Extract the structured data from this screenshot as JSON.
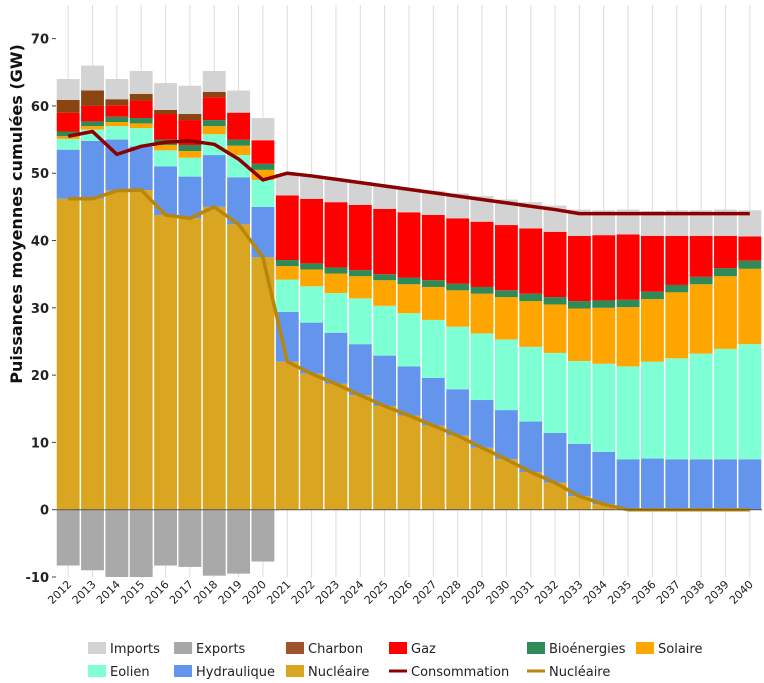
{
  "chart_data": {
    "type": "bar",
    "stacked": true,
    "title": "",
    "xlabel": "",
    "ylabel": "Puissances moyennes cumulées (GW)",
    "ylim": [
      -10,
      75
    ],
    "yticks": [
      -10,
      0,
      10,
      20,
      30,
      40,
      50,
      60,
      70
    ],
    "grid": "vertical",
    "legend_position": "bottom",
    "categories": [
      "2012",
      "2013",
      "2014",
      "2015",
      "2016",
      "2017",
      "2018",
      "2019",
      "2020",
      "2021",
      "2022",
      "2023",
      "2024",
      "2025",
      "2026",
      "2027",
      "2028",
      "2029",
      "2030",
      "2031",
      "2032",
      "2033",
      "2034",
      "2035",
      "2036",
      "2037",
      "2038",
      "2039",
      "2040"
    ],
    "series": [
      {
        "name": "Nucléaire",
        "color": "#DAA520",
        "values": [
          46.2,
          46.2,
          47.4,
          47.5,
          43.8,
          43.3,
          45.0,
          42.4,
          37.5,
          22.0,
          20.2,
          18.7,
          17.0,
          15.4,
          14.0,
          12.5,
          11.0,
          9.2,
          7.5,
          5.6,
          4.0,
          2.0,
          0.8,
          0,
          0,
          0,
          0,
          0,
          0
        ]
      },
      {
        "name": "Hydraulique",
        "color": "#6495ED",
        "values": [
          7.3,
          8.6,
          7.6,
          6.5,
          7.2,
          6.2,
          7.7,
          7.0,
          7.5,
          7.4,
          7.6,
          7.6,
          7.6,
          7.5,
          7.3,
          7.1,
          6.9,
          7.1,
          7.3,
          7.5,
          7.4,
          7.8,
          7.8,
          7.5,
          7.6,
          7.5,
          7.5,
          7.5,
          7.5
        ]
      },
      {
        "name": "Eolien",
        "color": "#7FFFD4",
        "values": [
          1.6,
          1.7,
          2.0,
          2.7,
          2.4,
          2.8,
          3.1,
          3.3,
          4.0,
          4.8,
          5.4,
          5.9,
          6.8,
          7.4,
          7.9,
          8.6,
          9.3,
          9.9,
          10.5,
          11.1,
          11.9,
          12.3,
          13.1,
          13.8,
          14.4,
          15.0,
          15.7,
          16.4,
          17.1
        ]
      },
      {
        "name": "Solaire",
        "color": "#FFA500",
        "values": [
          0.4,
          0.5,
          0.6,
          0.7,
          0.8,
          1.0,
          1.2,
          1.4,
          1.5,
          2.0,
          2.5,
          2.9,
          3.3,
          3.8,
          4.3,
          4.9,
          5.4,
          5.9,
          6.3,
          6.8,
          7.2,
          7.8,
          8.3,
          8.8,
          9.3,
          9.8,
          10.3,
          10.8,
          11.2
        ]
      },
      {
        "name": "Bioénergies",
        "color": "#2E8B57",
        "values": [
          0.7,
          0.7,
          0.8,
          0.8,
          0.8,
          0.9,
          0.9,
          0.9,
          0.9,
          0.9,
          0.9,
          0.9,
          0.9,
          0.9,
          1.0,
          1.0,
          1.0,
          1.0,
          1.0,
          1.1,
          1.1,
          1.1,
          1.1,
          1.1,
          1.1,
          1.1,
          1.1,
          1.2,
          1.2
        ]
      },
      {
        "name": "Gaz",
        "color": "#FF0000",
        "values": [
          2.8,
          2.3,
          1.7,
          2.6,
          3.8,
          3.7,
          3.4,
          4.0,
          3.5,
          9.6,
          9.6,
          9.7,
          9.7,
          9.7,
          9.7,
          9.7,
          9.7,
          9.7,
          9.7,
          9.7,
          9.7,
          9.7,
          9.7,
          9.7,
          8.3,
          7.3,
          6.1,
          4.8,
          3.6
        ]
      },
      {
        "name": "Charbon",
        "color": "#8B4513",
        "values": [
          1.9,
          2.3,
          0.9,
          1.0,
          0.6,
          0.9,
          0.8,
          0,
          0,
          0,
          0,
          0,
          0,
          0,
          0,
          0,
          0,
          0,
          0,
          0,
          0,
          0,
          0,
          0,
          0,
          0,
          0,
          0,
          0
        ]
      },
      {
        "name": "Imports",
        "color": "#D3D3D3",
        "values": [
          3.1,
          3.7,
          3.0,
          3.4,
          4.0,
          4.2,
          3.1,
          3.3,
          3.3,
          3.2,
          3.3,
          3.4,
          3.4,
          3.5,
          3.5,
          3.6,
          3.7,
          3.8,
          3.8,
          3.9,
          3.9,
          3.9,
          3.7,
          3.7,
          3.7,
          3.8,
          3.8,
          3.9,
          3.9
        ]
      },
      {
        "name": "Exports",
        "color": "#A9A9A9",
        "values": [
          -8.3,
          -9.0,
          -10.0,
          -10.0,
          -8.3,
          -8.5,
          -9.8,
          -9.5,
          -7.7,
          0,
          0,
          0,
          0,
          0,
          0,
          0,
          0,
          0,
          0,
          0,
          0,
          0,
          0,
          0,
          0,
          0,
          0,
          0,
          0
        ]
      }
    ],
    "lines": [
      {
        "name": "Consommation",
        "color": "#8B0000",
        "values": [
          55.5,
          56.2,
          52.8,
          54.0,
          54.6,
          54.8,
          54.3,
          52.1,
          49.0,
          50.0,
          49.6,
          49.1,
          48.6,
          48.1,
          47.6,
          47.1,
          46.6,
          46.1,
          45.6,
          45.1,
          44.6,
          44.0,
          44.0,
          44.0,
          44.0,
          44.0,
          44.0,
          44.0,
          44.0
        ]
      },
      {
        "name": "Nucléaire",
        "color": "#B8860B",
        "values": [
          46.2,
          46.2,
          47.4,
          47.5,
          43.8,
          43.3,
          45.0,
          42.4,
          37.5,
          22.0,
          20.2,
          18.7,
          17.0,
          15.4,
          14.0,
          12.5,
          11.0,
          9.2,
          7.5,
          5.6,
          4.0,
          2.0,
          0.8,
          0,
          0,
          0,
          0,
          0,
          0
        ]
      }
    ],
    "legend": [
      {
        "label": "Imports",
        "kind": "box",
        "color": "#D3D3D3"
      },
      {
        "label": "Exports",
        "kind": "box",
        "color": "#A9A9A9"
      },
      {
        "label": "Charbon",
        "kind": "box",
        "color": "#A0522D"
      },
      {
        "label": "Gaz",
        "kind": "box",
        "color": "#FF0000"
      },
      {
        "label": "Bioénergies",
        "kind": "box",
        "color": "#2E8B57"
      },
      {
        "label": "Solaire",
        "kind": "box",
        "color": "#FFA500"
      },
      {
        "label": "Eolien",
        "kind": "box",
        "color": "#7FFFD4"
      },
      {
        "label": "Hydraulique",
        "kind": "box",
        "color": "#6495ED"
      },
      {
        "label": "Nucléaire",
        "kind": "box",
        "color": "#DAA520"
      },
      {
        "label": "Consommation",
        "kind": "line",
        "color": "#8B0000"
      },
      {
        "label": "Nucléaire",
        "kind": "line",
        "color": "#B8860B"
      }
    ]
  }
}
